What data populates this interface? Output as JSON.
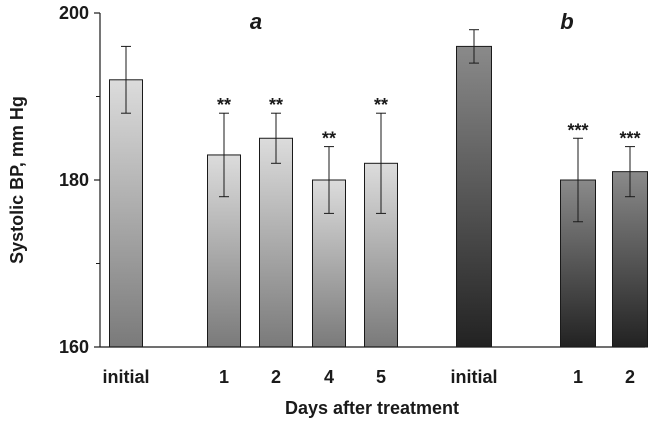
{
  "chart_data": {
    "type": "bar",
    "ylabel": "Systolic BP, mm Hg",
    "xlabel": "Days after treatment",
    "ylim": [
      160,
      200
    ],
    "yticks": [
      160,
      180,
      200
    ],
    "y_minor_ticks": [
      170,
      190
    ],
    "groups": [
      {
        "label": "a",
        "gradient": {
          "top": "#dcdcdc",
          "bottom": "#7a7a7a"
        },
        "bars": [
          {
            "category": "initial",
            "value": 192,
            "error": 4,
            "significance": ""
          },
          {
            "category": "1",
            "value": 183,
            "error": 5,
            "significance": "**"
          },
          {
            "category": "2",
            "value": 185,
            "error": 3,
            "significance": "**"
          },
          {
            "category": "4",
            "value": 180,
            "error": 4,
            "significance": "**"
          },
          {
            "category": "5",
            "value": 182,
            "error": 6,
            "significance": "**"
          }
        ]
      },
      {
        "label": "b",
        "gradient": {
          "top": "#8a8a8a",
          "bottom": "#222222"
        },
        "bars": [
          {
            "category": "initial",
            "value": 196,
            "error": 2,
            "significance": ""
          },
          {
            "category": "1",
            "value": 180,
            "error": 5,
            "significance": "***"
          },
          {
            "category": "2",
            "value": 181,
            "error": 3,
            "significance": "***"
          }
        ]
      }
    ],
    "grid": false,
    "legend": "none"
  }
}
